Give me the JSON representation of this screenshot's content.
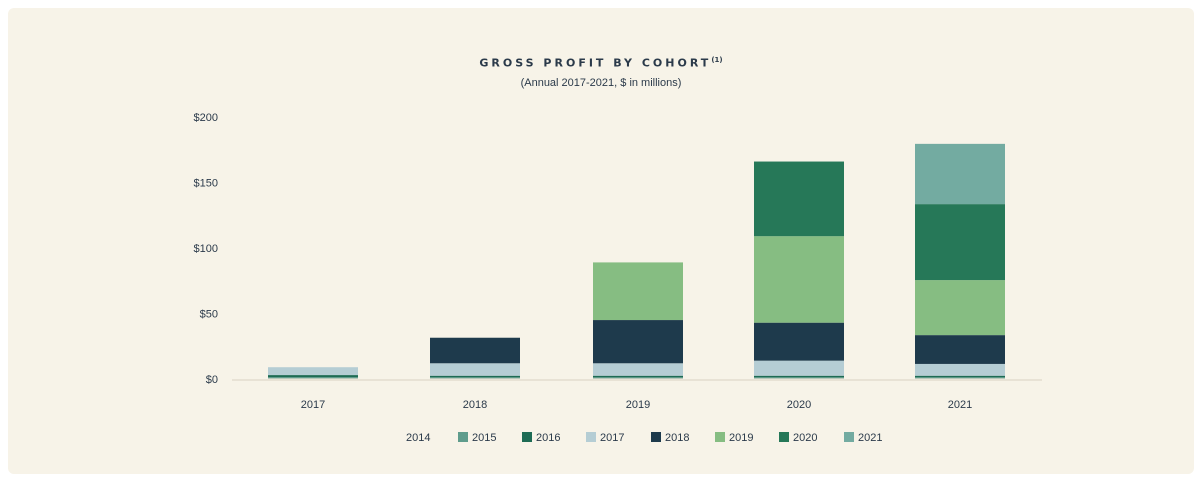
{
  "chart_data": {
    "type": "bar",
    "stacked": true,
    "title": "GROSS PROFIT BY COHORT",
    "title_superscript": "(1)",
    "subtitle": "(Annual 2017-2021, $ in millions)",
    "categories": [
      "2017",
      "2018",
      "2019",
      "2020",
      "2021"
    ],
    "yticks": [
      "$0",
      "$50",
      "$100",
      "$150",
      "$200"
    ],
    "ylim": [
      0,
      200
    ],
    "grid": false,
    "legend_position": "bottom",
    "series": [
      {
        "name": "2014",
        "color": "#e6e0d2",
        "values": [
          0.5,
          0.5,
          0.5,
          0.5,
          0.5
        ]
      },
      {
        "name": "2015",
        "color": "#5f9c8c",
        "values": [
          1,
          0.8,
          0.8,
          0.8,
          0.8
        ]
      },
      {
        "name": "2016",
        "color": "#1e6b54",
        "values": [
          1.5,
          1.2,
          1.2,
          1.2,
          1.2
        ]
      },
      {
        "name": "2017",
        "color": "#b5cdd4",
        "values": [
          6,
          9.5,
          9.5,
          11.5,
          9
        ]
      },
      {
        "name": "2018",
        "color": "#1e3a4c",
        "values": [
          0,
          19.5,
          33,
          29,
          22
        ]
      },
      {
        "name": "2019",
        "color": "#86bd82",
        "values": [
          0,
          0,
          44,
          66,
          42
        ]
      },
      {
        "name": "2020",
        "color": "#267858",
        "values": [
          0,
          0,
          0,
          57,
          58
        ]
      },
      {
        "name": "2021",
        "color": "#73aba1",
        "values": [
          0,
          0,
          0,
          0,
          46
        ]
      }
    ]
  }
}
